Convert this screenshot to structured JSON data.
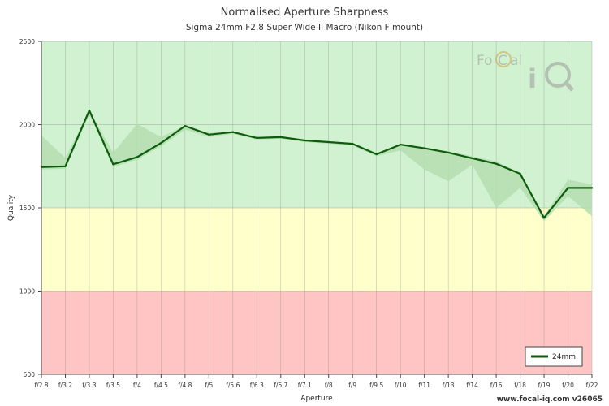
{
  "chart_data": {
    "type": "line",
    "title": "Normalised Aperture Sharpness",
    "subtitle": "Sigma 24mm F2.8 Super Wide II Macro (Nikon F mount)",
    "xlabel": "Aperture",
    "ylabel": "Quality",
    "ylim": [
      500,
      2500
    ],
    "yticks": [
      500,
      1000,
      1500,
      2000,
      2500
    ],
    "grid": true,
    "legend_position": "bottom-right",
    "categories": [
      "f/2.8",
      "f/3.2",
      "f/3.3",
      "f/3.5",
      "f/4",
      "f/4.5",
      "f/4.8",
      "f/5",
      "f/5.6",
      "f/6.3",
      "f/6.7",
      "f/7.1",
      "f/8",
      "f/9",
      "f/9.5",
      "f/10",
      "f/11",
      "f/13",
      "f/14",
      "f/16",
      "f/18",
      "f/19",
      "f/20",
      "f/22"
    ],
    "series": [
      {
        "name": "24mm",
        "values": [
          1745,
          1750,
          2085,
          1762,
          1805,
          1890,
          1992,
          1940,
          1955,
          1920,
          1925,
          1905,
          1895,
          1885,
          1822,
          1880,
          1858,
          1832,
          1798,
          1765,
          1705,
          1440,
          1620,
          1620
        ],
        "range_low": [
          1730,
          1735,
          2060,
          1745,
          1790,
          1870,
          1970,
          1925,
          1945,
          1910,
          1915,
          1895,
          1885,
          1875,
          1810,
          1845,
          1730,
          1660,
          1760,
          1500,
          1620,
          1420,
          1570,
          1450
        ],
        "range_high": [
          1935,
          1800,
          2085,
          1830,
          2005,
          1925,
          1995,
          1950,
          1960,
          1925,
          1930,
          1910,
          1900,
          1890,
          1830,
          1880,
          1860,
          1840,
          1810,
          1780,
          1710,
          1450,
          1670,
          1640
        ]
      }
    ],
    "bands": [
      {
        "from": 1500,
        "to": 2500,
        "color": "#d0f2d0"
      },
      {
        "from": 1000,
        "to": 1500,
        "color": "#ffffcc"
      },
      {
        "from": 500,
        "to": 1000,
        "color": "#ffc4c4"
      }
    ],
    "colors": {
      "line": "#0d5c0d",
      "range": "#b5deb0",
      "grid": "#888888"
    }
  },
  "logo": {
    "text_top": "FoCal",
    "text_bottom": "iQ"
  },
  "footer": "www.focal-iq.com  v26065"
}
